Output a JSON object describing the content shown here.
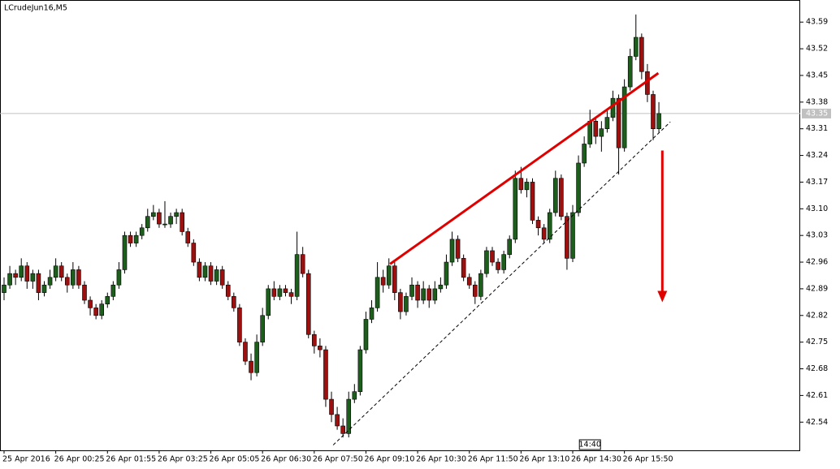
{
  "chart_data": {
    "type": "candlestick",
    "title": "LCrudeJun16,M5",
    "bull_color": "#1d5e1d",
    "bear_color": "#9c1010",
    "grid": false,
    "ylim": [
      42.466,
      43.648
    ],
    "yticks": [
      43.59,
      43.52,
      43.45,
      43.38,
      43.31,
      43.24,
      43.17,
      {
        "value": 43.1,
        "label": "43.10"
      },
      43.03,
      42.96,
      42.89,
      42.82,
      42.75,
      42.68,
      42.61,
      42.54
    ],
    "xlim": [
      0,
      138.6
    ],
    "xticks": [
      {
        "value": 0,
        "label": "25 Apr 2016"
      },
      {
        "value": 9,
        "label": "26 Apr 00:25"
      },
      {
        "value": 18,
        "label": "26 Apr 01:55"
      },
      {
        "value": 27,
        "label": "26 Apr 03:25"
      },
      {
        "value": 36,
        "label": "26 Apr 05:05"
      },
      {
        "value": 45,
        "label": "26 Apr 06:30"
      },
      {
        "value": 54,
        "label": "26 Apr 07:50"
      },
      {
        "value": 63,
        "label": "26 Apr 09:10"
      },
      {
        "value": 72,
        "label": "26 Apr 10:30"
      },
      {
        "value": 81,
        "label": "26 Apr 11:50"
      },
      {
        "value": 90,
        "label": "26 Apr 13:10"
      },
      {
        "value": 99,
        "label": "26 Apr 14:30"
      },
      {
        "value": 108,
        "label": "26 Apr 15:50"
      }
    ],
    "last_price": 43.35,
    "last_price_color": "#c0c0c0",
    "time_marker": {
      "value": 102,
      "label": "14:40"
    },
    "trendlines": [
      {
        "color": "#e00000",
        "style": "solid",
        "from": [
          67.2,
          42.955
        ],
        "to": [
          113.9,
          43.456
        ]
      },
      {
        "color": "#000000",
        "style": "dashed",
        "from": [
          57.3,
          42.48
        ],
        "to": [
          116,
          43.328
        ]
      }
    ],
    "arrow": {
      "color": "#e00000",
      "x": 114.6,
      "from": 43.253,
      "to": 42.859
    },
    "ohlc": [
      [
        42.88,
        42.92,
        42.86,
        42.9
      ],
      [
        42.9,
        42.95,
        42.89,
        42.93
      ],
      [
        42.93,
        42.94,
        42.9,
        42.92
      ],
      [
        42.92,
        42.97,
        42.91,
        42.95
      ],
      [
        42.95,
        42.96,
        42.89,
        42.91
      ],
      [
        42.91,
        42.94,
        42.89,
        42.93
      ],
      [
        42.93,
        42.94,
        42.86,
        42.88
      ],
      [
        42.88,
        42.91,
        42.87,
        42.9
      ],
      [
        42.9,
        42.94,
        42.89,
        42.92
      ],
      [
        42.92,
        42.97,
        42.91,
        42.95
      ],
      [
        42.95,
        42.96,
        42.91,
        42.92
      ],
      [
        42.92,
        42.93,
        42.88,
        42.9
      ],
      [
        42.9,
        42.96,
        42.89,
        42.94
      ],
      [
        42.94,
        42.95,
        42.89,
        42.9
      ],
      [
        42.9,
        42.91,
        42.85,
        42.86
      ],
      [
        42.86,
        42.87,
        42.82,
        42.84
      ],
      [
        42.84,
        42.85,
        42.81,
        42.82
      ],
      [
        42.82,
        42.86,
        42.81,
        42.85
      ],
      [
        42.85,
        42.88,
        42.84,
        42.87
      ],
      [
        42.87,
        42.91,
        42.86,
        42.9
      ],
      [
        42.9,
        42.96,
        42.89,
        42.94
      ],
      [
        42.94,
        43.04,
        42.93,
        43.03
      ],
      [
        43.03,
        43.04,
        43.0,
        43.01
      ],
      [
        43.01,
        43.04,
        43.0,
        43.03
      ],
      [
        43.03,
        43.06,
        43.02,
        43.05
      ],
      [
        43.05,
        43.1,
        43.04,
        43.08
      ],
      [
        43.08,
        43.11,
        43.07,
        43.09
      ],
      [
        43.09,
        43.1,
        43.05,
        43.06
      ],
      [
        43.06,
        43.12,
        43.05,
        43.06
      ],
      [
        43.06,
        43.09,
        43.05,
        43.08
      ],
      [
        43.08,
        43.1,
        43.06,
        43.09
      ],
      [
        43.09,
        43.1,
        43.03,
        43.04
      ],
      [
        43.04,
        43.05,
        43.0,
        43.01
      ],
      [
        43.01,
        43.02,
        42.95,
        42.96
      ],
      [
        42.96,
        42.97,
        42.91,
        42.92
      ],
      [
        42.92,
        42.96,
        42.91,
        42.95
      ],
      [
        42.95,
        42.96,
        42.9,
        42.91
      ],
      [
        42.91,
        42.95,
        42.9,
        42.94
      ],
      [
        42.94,
        42.95,
        42.89,
        42.9
      ],
      [
        42.9,
        42.91,
        42.86,
        42.87
      ],
      [
        42.87,
        42.88,
        42.83,
        42.84
      ],
      [
        42.84,
        42.85,
        42.74,
        42.75
      ],
      [
        42.75,
        42.76,
        42.69,
        42.7
      ],
      [
        42.7,
        42.72,
        42.65,
        42.67
      ],
      [
        42.67,
        42.77,
        42.66,
        42.75
      ],
      [
        42.75,
        42.84,
        42.74,
        42.82
      ],
      [
        42.82,
        42.9,
        42.81,
        42.89
      ],
      [
        42.89,
        42.91,
        42.86,
        42.87
      ],
      [
        42.87,
        42.9,
        42.86,
        42.89
      ],
      [
        42.89,
        42.9,
        42.87,
        42.88
      ],
      [
        42.88,
        42.89,
        42.85,
        42.87
      ],
      [
        42.87,
        43.04,
        42.86,
        42.98
      ],
      [
        42.98,
        43.0,
        42.92,
        42.93
      ],
      [
        42.93,
        42.94,
        42.76,
        42.77
      ],
      [
        42.77,
        42.78,
        42.72,
        42.74
      ],
      [
        42.74,
        42.76,
        42.71,
        42.73
      ],
      [
        42.73,
        42.74,
        42.58,
        42.6
      ],
      [
        42.6,
        42.62,
        42.54,
        42.56
      ],
      [
        42.56,
        42.58,
        42.52,
        42.53
      ],
      [
        42.53,
        42.55,
        42.5,
        42.51
      ],
      [
        42.51,
        42.62,
        42.5,
        42.6
      ],
      [
        42.6,
        42.64,
        42.59,
        42.62
      ],
      [
        42.62,
        42.74,
        42.61,
        42.73
      ],
      [
        42.73,
        42.83,
        42.72,
        42.81
      ],
      [
        42.81,
        42.86,
        42.8,
        42.84
      ],
      [
        42.84,
        42.96,
        42.83,
        42.92
      ],
      [
        42.92,
        42.94,
        42.88,
        42.9
      ],
      [
        42.9,
        42.97,
        42.89,
        42.95
      ],
      [
        42.95,
        42.96,
        42.86,
        42.88
      ],
      [
        42.88,
        42.89,
        42.81,
        42.83
      ],
      [
        42.83,
        42.88,
        42.82,
        42.87
      ],
      [
        42.87,
        42.92,
        42.86,
        42.9
      ],
      [
        42.9,
        42.91,
        42.84,
        42.86
      ],
      [
        42.86,
        42.91,
        42.85,
        42.89
      ],
      [
        42.89,
        42.9,
        42.84,
        42.86
      ],
      [
        42.86,
        42.91,
        42.85,
        42.89
      ],
      [
        42.89,
        42.92,
        42.88,
        42.9
      ],
      [
        42.9,
        42.98,
        42.89,
        42.96
      ],
      [
        42.96,
        43.04,
        42.95,
        43.02
      ],
      [
        43.02,
        43.03,
        42.96,
        42.97
      ],
      [
        42.97,
        42.98,
        42.91,
        42.92
      ],
      [
        42.92,
        42.93,
        42.89,
        42.9
      ],
      [
        42.9,
        42.91,
        42.85,
        42.87
      ],
      [
        42.87,
        42.94,
        42.86,
        42.93
      ],
      [
        42.93,
        43.0,
        42.92,
        42.99
      ],
      [
        42.99,
        43.0,
        42.95,
        42.96
      ],
      [
        42.96,
        42.97,
        42.93,
        42.94
      ],
      [
        42.94,
        42.99,
        42.93,
        42.98
      ],
      [
        42.98,
        43.03,
        42.97,
        43.02
      ],
      [
        43.02,
        43.2,
        43.01,
        43.18
      ],
      [
        43.18,
        43.21,
        43.14,
        43.15
      ],
      [
        43.15,
        43.18,
        43.13,
        43.17
      ],
      [
        43.17,
        43.18,
        43.06,
        43.07
      ],
      [
        43.07,
        43.08,
        43.03,
        43.05
      ],
      [
        43.05,
        43.06,
        43.01,
        43.02
      ],
      [
        43.02,
        43.1,
        43.01,
        43.09
      ],
      [
        43.09,
        43.2,
        43.08,
        43.18
      ],
      [
        43.18,
        43.19,
        43.07,
        43.08
      ],
      [
        43.08,
        43.09,
        42.94,
        42.97
      ],
      [
        42.97,
        43.11,
        42.96,
        43.09
      ],
      [
        43.09,
        43.24,
        43.08,
        43.22
      ],
      [
        43.22,
        43.29,
        43.21,
        43.27
      ],
      [
        43.27,
        43.36,
        43.26,
        43.33
      ],
      [
        43.33,
        43.34,
        43.27,
        43.29
      ],
      [
        43.29,
        43.33,
        43.25,
        43.31
      ],
      [
        43.31,
        43.36,
        43.3,
        43.34
      ],
      [
        43.34,
        43.41,
        43.33,
        43.39
      ],
      [
        43.39,
        43.4,
        43.19,
        43.26
      ],
      [
        43.26,
        43.44,
        43.25,
        43.42
      ],
      [
        43.42,
        43.52,
        43.41,
        43.5
      ],
      [
        43.5,
        43.61,
        43.49,
        43.55
      ],
      [
        43.55,
        43.56,
        43.44,
        43.46
      ],
      [
        43.46,
        43.48,
        43.38,
        43.4
      ],
      [
        43.4,
        43.41,
        43.28,
        43.31
      ],
      [
        43.31,
        43.38,
        43.3,
        43.35
      ]
    ]
  }
}
